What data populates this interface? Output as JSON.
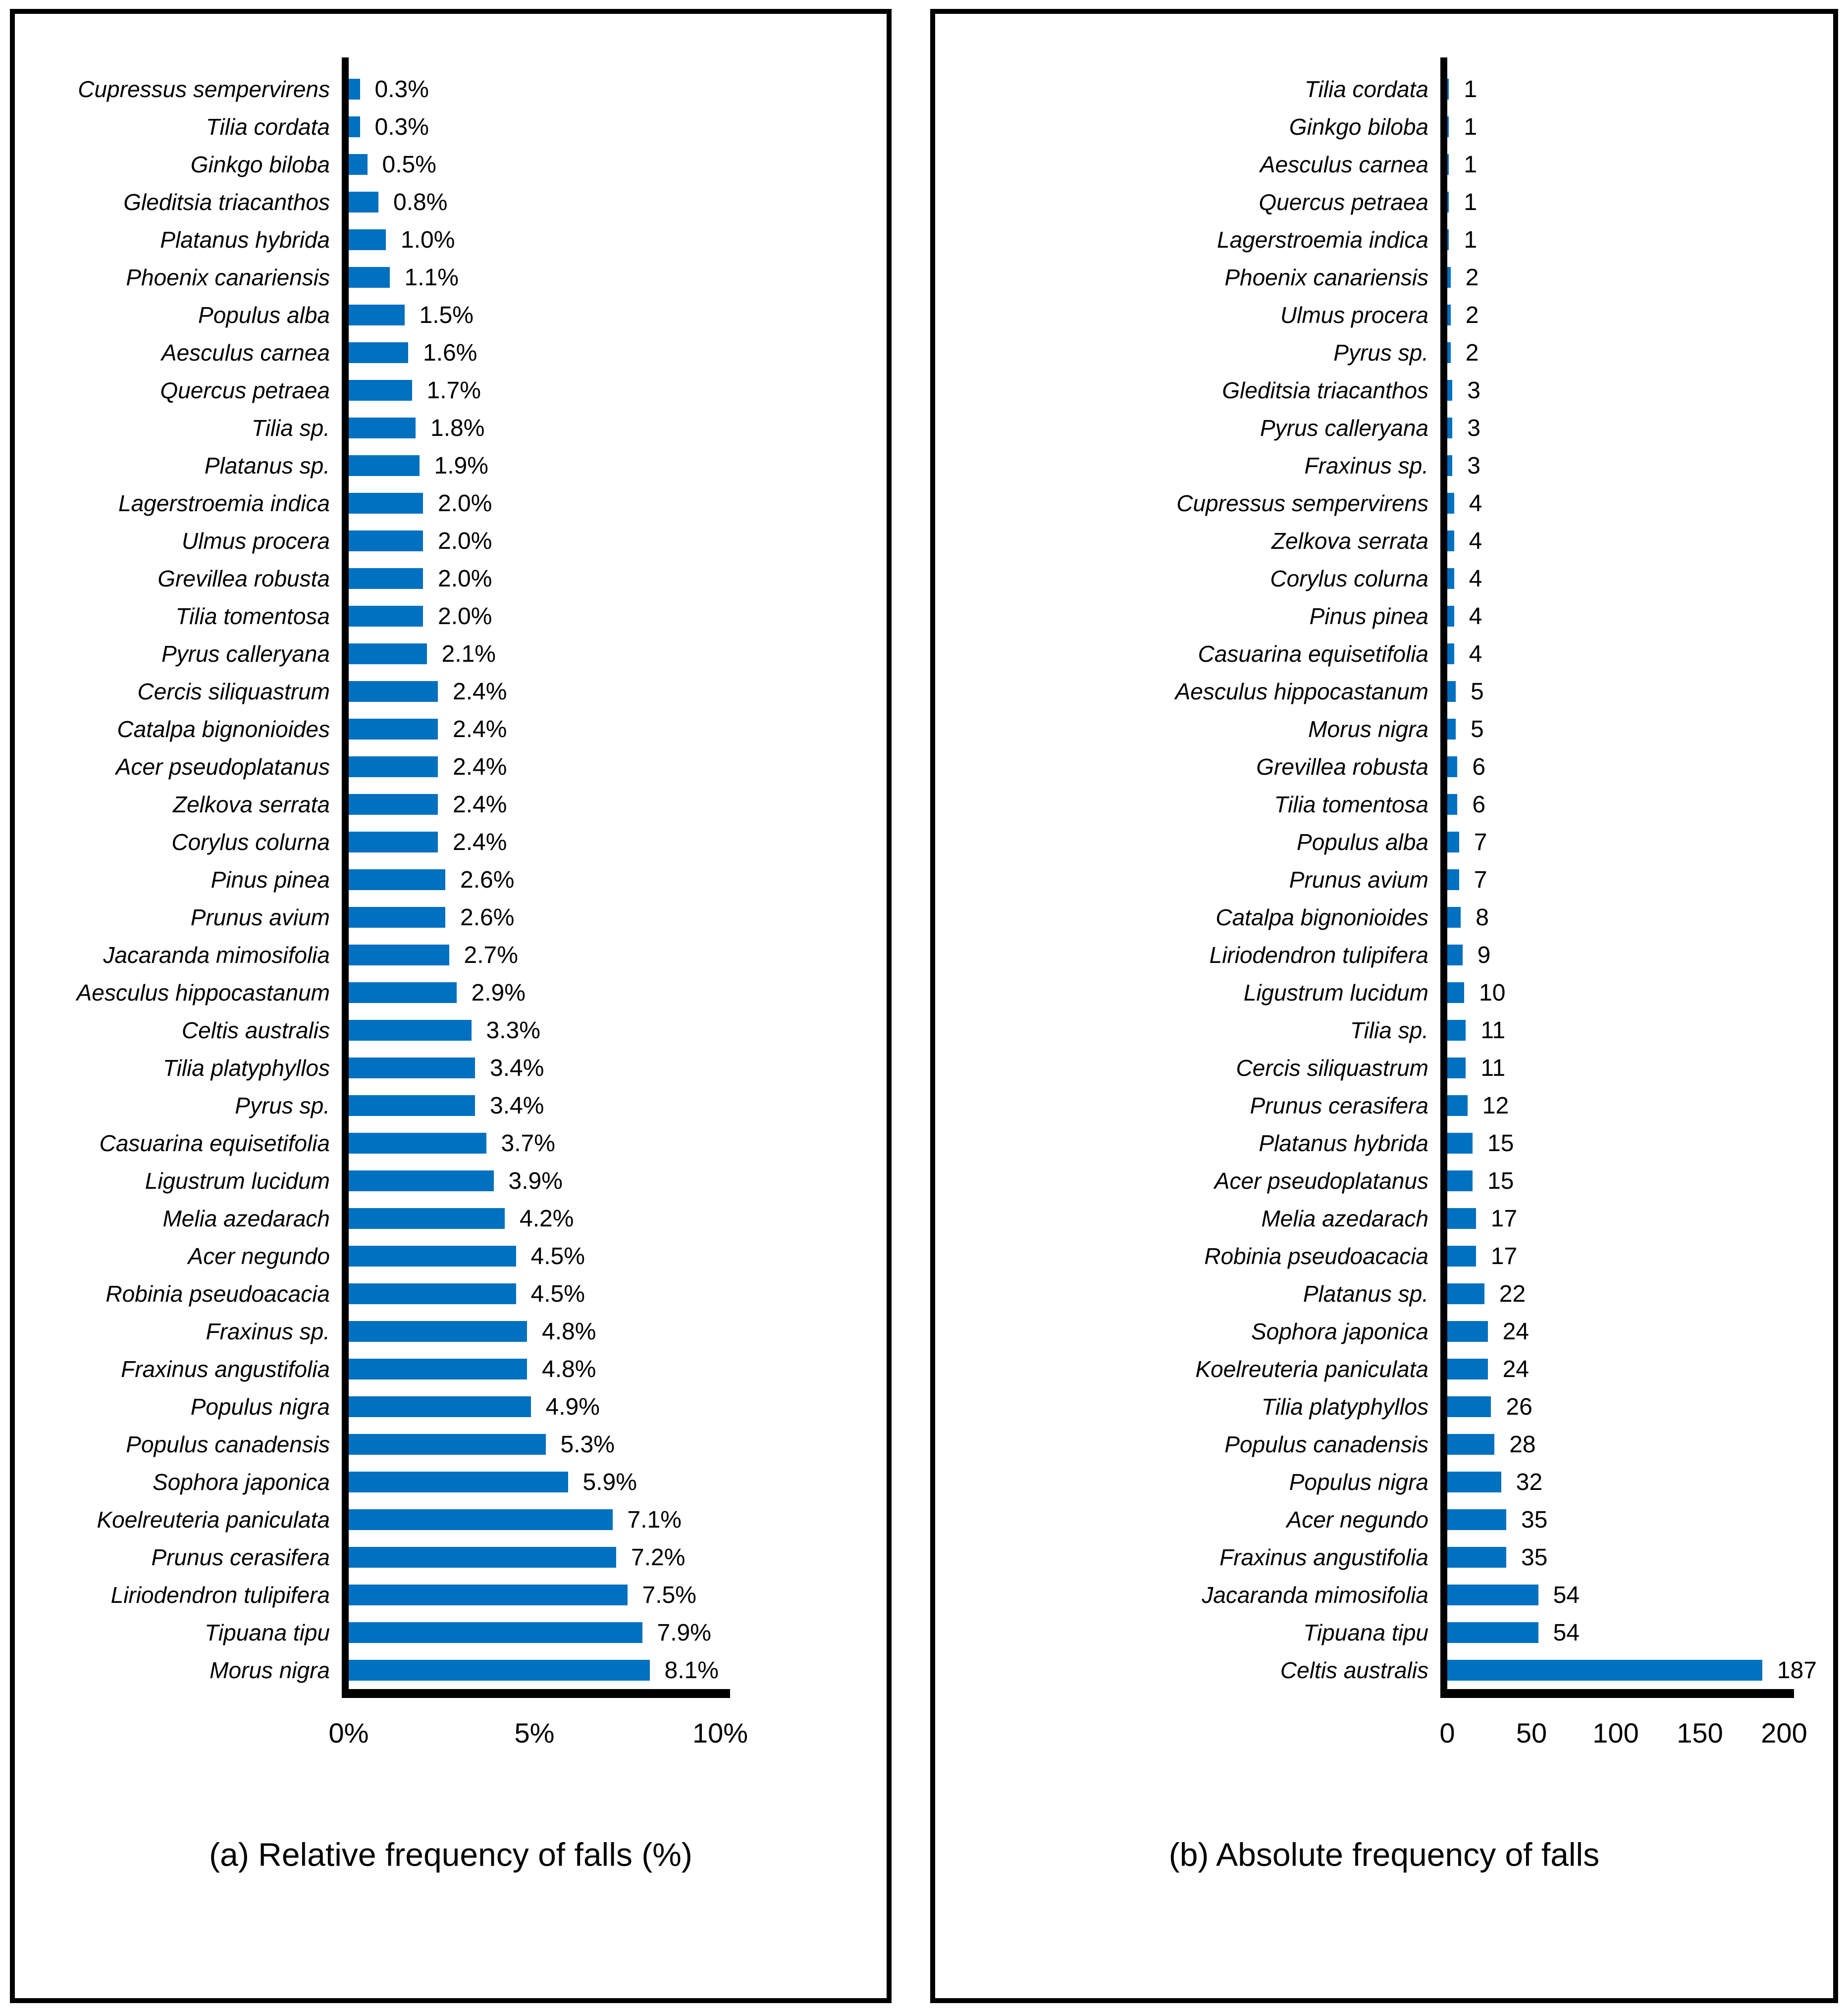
{
  "styles": {
    "bar_color": "#0070C0",
    "axis_color": "#000000",
    "background": "#ffffff"
  },
  "chart_data": [
    {
      "type": "bar",
      "orientation": "horizontal",
      "title": "(a) Relative frequency of falls (%)",
      "xlabel": "",
      "ylabel": "",
      "xlim": [
        0,
        10
      ],
      "xticks": [
        "0%",
        "5%",
        "10%"
      ],
      "grid": false,
      "legend": null,
      "categories": [
        "Cupressus sempervirens",
        "Tilia cordata",
        "Ginkgo biloba",
        "Gleditsia triacanthos",
        "Platanus hybrida",
        "Phoenix canariensis",
        "Populus alba",
        "Aesculus carnea",
        "Quercus petraea",
        "Tilia sp.",
        "Platanus sp.",
        "Lagerstroemia indica",
        "Ulmus procera",
        "Grevillea robusta",
        "Tilia tomentosa",
        "Pyrus calleryana",
        "Cercis siliquastrum",
        "Catalpa bignonioides",
        "Acer pseudoplatanus",
        "Zelkova serrata",
        "Corylus colurna",
        "Pinus pinea",
        "Prunus avium",
        "Jacaranda mimosifolia",
        "Aesculus hippocastanum",
        "Celtis australis",
        "Tilia platyphyllos",
        "Pyrus sp.",
        "Casuarina equisetifolia",
        "Ligustrum lucidum",
        "Melia azedarach",
        "Acer negundo",
        "Robinia pseudoacacia",
        "Fraxinus sp.",
        "Fraxinus angustifolia",
        "Populus nigra",
        "Populus canadensis",
        "Sophora japonica",
        "Koelreuteria paniculata",
        "Prunus cerasifera",
        "Liriodendron tulipifera",
        "Tipuana tipu",
        "Morus nigra"
      ],
      "values": [
        0.3,
        0.3,
        0.5,
        0.8,
        1.0,
        1.1,
        1.5,
        1.6,
        1.7,
        1.8,
        1.9,
        2.0,
        2.0,
        2.0,
        2.0,
        2.1,
        2.4,
        2.4,
        2.4,
        2.4,
        2.4,
        2.6,
        2.6,
        2.7,
        2.9,
        3.3,
        3.4,
        3.4,
        3.7,
        3.9,
        4.2,
        4.5,
        4.5,
        4.8,
        4.8,
        4.9,
        5.3,
        5.9,
        7.1,
        7.2,
        7.5,
        7.9,
        8.1
      ],
      "value_labels": [
        "0.3%",
        "0.3%",
        "0.5%",
        "0.8%",
        "1.0%",
        "1.1%",
        "1.5%",
        "1.6%",
        "1.7%",
        "1.8%",
        "1.9%",
        "2.0%",
        "2.0%",
        "2.0%",
        "2.0%",
        "2.1%",
        "2.4%",
        "2.4%",
        "2.4%",
        "2.4%",
        "2.4%",
        "2.6%",
        "2.6%",
        "2.7%",
        "2.9%",
        "3.3%",
        "3.4%",
        "3.4%",
        "3.7%",
        "3.9%",
        "4.2%",
        "4.5%",
        "4.5%",
        "4.8%",
        "4.8%",
        "4.9%",
        "5.3%",
        "5.9%",
        "7.1%",
        "7.2%",
        "7.5%",
        "7.9%",
        "8.1%"
      ]
    },
    {
      "type": "bar",
      "orientation": "horizontal",
      "title": "(b) Absolute frequency of falls",
      "xlabel": "",
      "ylabel": "",
      "xlim": [
        0,
        200
      ],
      "xticks": [
        "0",
        "50",
        "100",
        "150",
        "200"
      ],
      "grid": false,
      "legend": null,
      "categories": [
        "Tilia cordata",
        "Ginkgo biloba",
        "Aesculus carnea",
        "Quercus petraea",
        "Lagerstroemia indica",
        "Phoenix canariensis",
        "Ulmus procera",
        "Pyrus sp.",
        "Gleditsia triacanthos",
        "Pyrus calleryana",
        "Fraxinus sp.",
        "Cupressus sempervirens",
        "Zelkova serrata",
        "Corylus colurna",
        "Pinus pinea",
        "Casuarina equisetifolia",
        "Aesculus hippocastanum",
        "Morus nigra",
        "Grevillea robusta",
        "Tilia tomentosa",
        "Populus alba",
        "Prunus avium",
        "Catalpa bignonioides",
        "Liriodendron tulipifera",
        "Ligustrum lucidum",
        "Tilia sp.",
        "Cercis siliquastrum",
        "Prunus cerasifera",
        "Platanus hybrida",
        "Acer pseudoplatanus",
        "Melia azedarach",
        "Robinia pseudoacacia",
        "Platanus sp.",
        "Sophora japonica",
        "Koelreuteria paniculata",
        "Tilia platyphyllos",
        "Populus canadensis",
        "Populus nigra",
        "Acer negundo",
        "Fraxinus angustifolia",
        "Jacaranda mimosifolia",
        "Tipuana tipu",
        "Celtis australis"
      ],
      "values": [
        1,
        1,
        1,
        1,
        1,
        2,
        2,
        2,
        3,
        3,
        3,
        4,
        4,
        4,
        4,
        4,
        5,
        5,
        6,
        6,
        7,
        7,
        8,
        9,
        10,
        11,
        11,
        12,
        15,
        15,
        17,
        17,
        22,
        24,
        24,
        26,
        28,
        32,
        35,
        35,
        54,
        54,
        187
      ],
      "value_labels": [
        "1",
        "1",
        "1",
        "1",
        "1",
        "2",
        "2",
        "2",
        "3",
        "3",
        "3",
        "4",
        "4",
        "4",
        "4",
        "4",
        "5",
        "5",
        "6",
        "6",
        "7",
        "7",
        "8",
        "9",
        "10",
        "11",
        "11",
        "12",
        "15",
        "15",
        "17",
        "17",
        "22",
        "24",
        "24",
        "26",
        "28",
        "32",
        "35",
        "35",
        "54",
        "54",
        "187"
      ]
    }
  ]
}
